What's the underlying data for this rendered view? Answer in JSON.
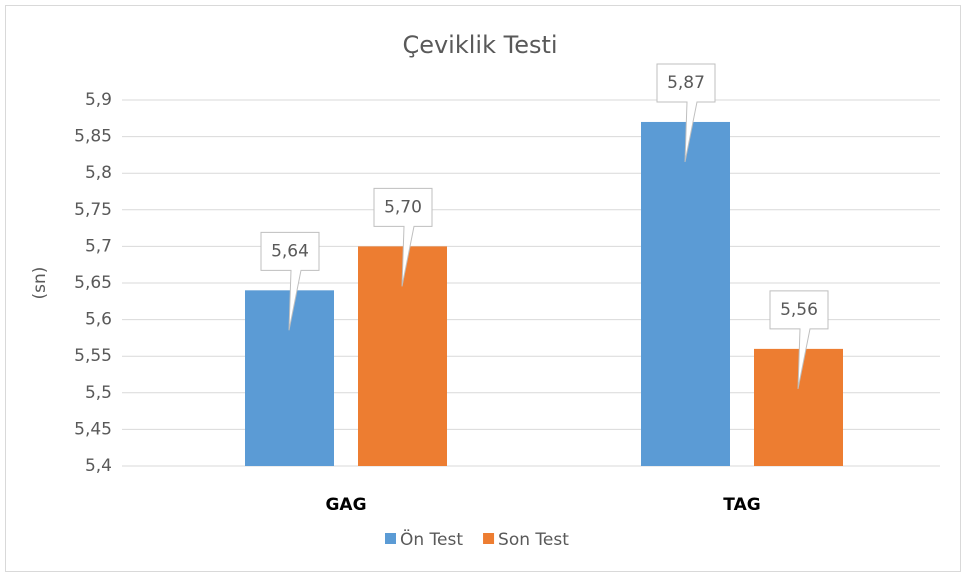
{
  "chart_data": {
    "type": "bar",
    "title": "Çeviklik Testi",
    "y_label": "(sn)",
    "categories": [
      "GAG",
      "TAG"
    ],
    "series": [
      {
        "name": "Ön Test",
        "color": "#5b9bd5",
        "values": [
          5.64,
          5.87
        ],
        "value_labels": [
          "5,64",
          "5,87"
        ]
      },
      {
        "name": "Son Test",
        "color": "#ed7d31",
        "values": [
          5.7,
          5.56
        ],
        "value_labels": [
          "5,70",
          "5,56"
        ]
      }
    ],
    "ylim": [
      5.4,
      5.9
    ],
    "yticks": [
      {
        "value": 5.4,
        "label": "5,4"
      },
      {
        "value": 5.45,
        "label": "5,45"
      },
      {
        "value": 5.5,
        "label": "5,5"
      },
      {
        "value": 5.55,
        "label": "5,55"
      },
      {
        "value": 5.6,
        "label": "5,6"
      },
      {
        "value": 5.65,
        "label": "5,65"
      },
      {
        "value": 5.7,
        "label": "5,7"
      },
      {
        "value": 5.75,
        "label": "5,75"
      },
      {
        "value": 5.8,
        "label": "5,8"
      },
      {
        "value": 5.85,
        "label": "5,85"
      },
      {
        "value": 5.9,
        "label": "5,9"
      }
    ],
    "grid": true,
    "legend": "bottom"
  }
}
